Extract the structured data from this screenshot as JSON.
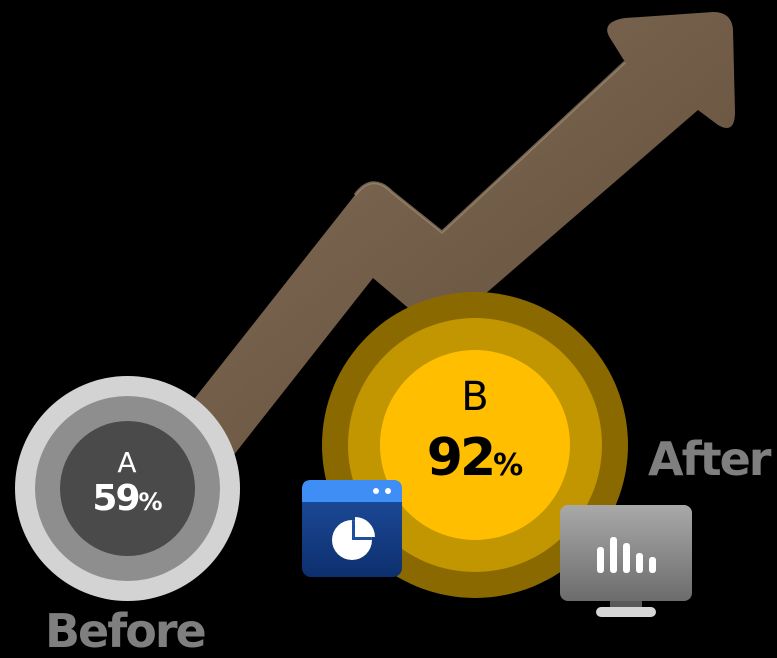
{
  "before": {
    "letter": "A",
    "value": "59",
    "unit": "%",
    "label": "Before",
    "progress_percent": 59,
    "colors": {
      "outer": "#d3d3d3",
      "mid": "#8e8e8e",
      "core": "#4a4a4a"
    }
  },
  "after": {
    "letter": "B",
    "value": "92",
    "unit": "%",
    "label": "After",
    "progress_percent": 92,
    "colors": {
      "outer": "#8a6a00",
      "mid": "#c29600",
      "core": "#ffbf00"
    }
  },
  "icons": {
    "arrow": "trend-up-arrow-icon",
    "window": "pie-chart-window-icon",
    "monitor": "bar-chart-monitor-icon"
  },
  "colors": {
    "background": "#000000",
    "arrow": "#6f5a44",
    "label": "#7f7f7f"
  }
}
